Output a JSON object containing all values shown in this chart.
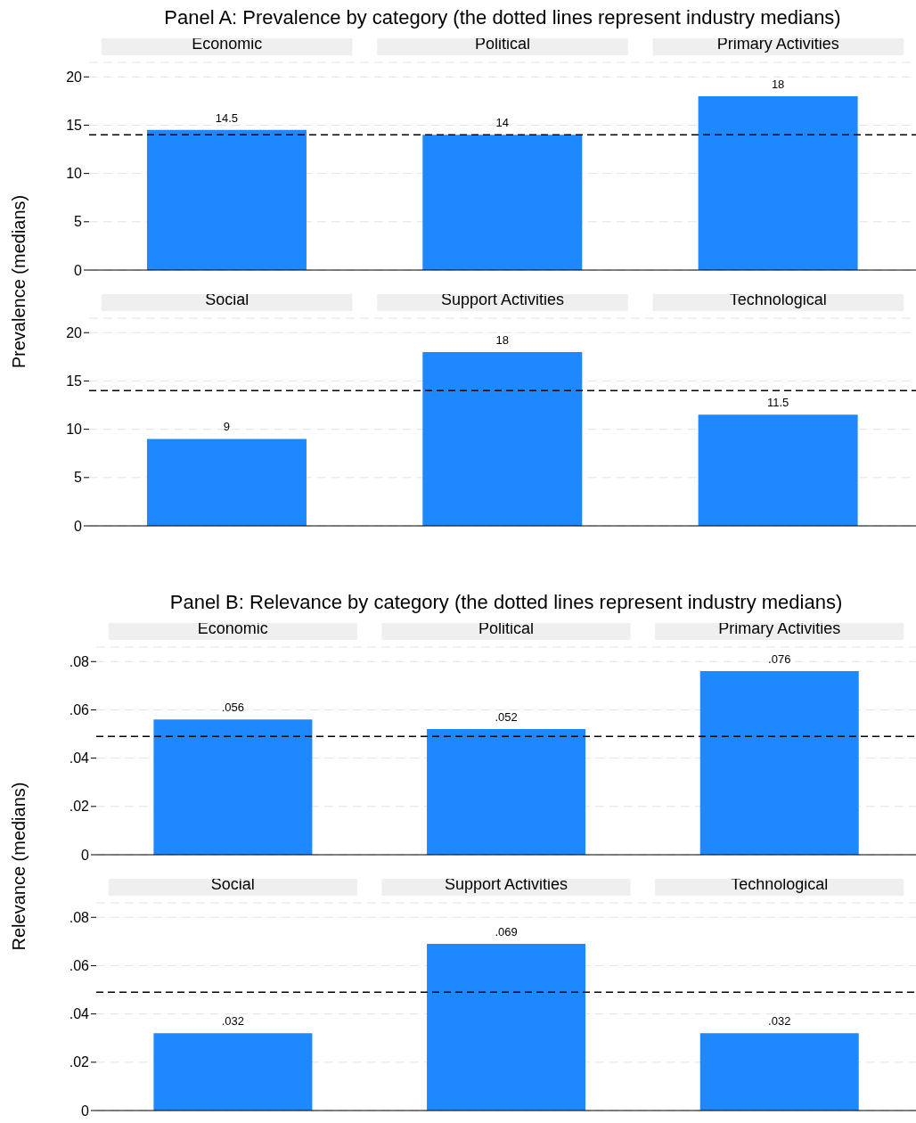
{
  "chart_data": [
    {
      "type": "bar",
      "title": "Panel A: Prevalence by category (the dotted lines represent industry medians)",
      "ylabel": "Prevalence (medians)",
      "categories": [
        "Economic",
        "Political",
        "Primary Activities"
      ],
      "values": [
        14.5,
        14,
        18
      ],
      "color": "#1e88ff",
      "data_labels": true,
      "ylim": [
        0,
        21.5
      ],
      "yticks": [
        0,
        5,
        10,
        15,
        20
      ],
      "grid": "y",
      "ref_lines": [
        {
          "axis": "y",
          "value": 14,
          "line_style": "dashed",
          "color": "#000000"
        }
      ]
    },
    {
      "type": "bar",
      "categories": [
        "Social",
        "Support Activities",
        "Technological"
      ],
      "values": [
        9,
        18,
        11.5
      ],
      "color": "#1e88ff",
      "data_labels": true,
      "ylim": [
        0,
        21.5
      ],
      "yticks": [
        0,
        5,
        10,
        15,
        20
      ],
      "grid": "y",
      "ref_lines": [
        {
          "axis": "y",
          "value": 14,
          "line_style": "dashed",
          "color": "#000000"
        }
      ]
    },
    {
      "type": "bar",
      "title": "Panel B: Relevance by category (the dotted lines represent industry medians)",
      "ylabel": "Relevance (medians)",
      "categories": [
        "Economic",
        "Political",
        "Primary Activities"
      ],
      "values": [
        0.056,
        0.052,
        0.076
      ],
      "value_labels": [
        ".056",
        ".052",
        ".076"
      ],
      "color": "#1e88ff",
      "ylim": [
        0,
        0.086
      ],
      "yticks": [
        0,
        {
          "value": 0.02,
          "label": ".02"
        },
        {
          "value": 0.04,
          "label": ".04"
        },
        {
          "value": 0.06,
          "label": ".06"
        },
        {
          "value": 0.08,
          "label": ".08"
        }
      ],
      "grid": "y",
      "ref_lines": [
        {
          "axis": "y",
          "value": 0.049,
          "line_style": "dashed",
          "color": "#000000"
        }
      ]
    },
    {
      "type": "bar",
      "categories": [
        "Social",
        "Support Activities",
        "Technological"
      ],
      "values": [
        0.032,
        0.069,
        0.032
      ],
      "value_labels": [
        ".032",
        ".069",
        ".032"
      ],
      "color": "#1e88ff",
      "ylim": [
        0,
        0.086
      ],
      "yticks": [
        0,
        {
          "value": 0.02,
          "label": ".02"
        },
        {
          "value": 0.04,
          "label": ".04"
        },
        {
          "value": 0.06,
          "label": ".06"
        },
        {
          "value": 0.08,
          "label": ".08"
        }
      ],
      "grid": "y",
      "ref_lines": [
        {
          "axis": "y",
          "value": 0.049,
          "line_style": "dashed",
          "color": "#000000"
        }
      ]
    }
  ]
}
